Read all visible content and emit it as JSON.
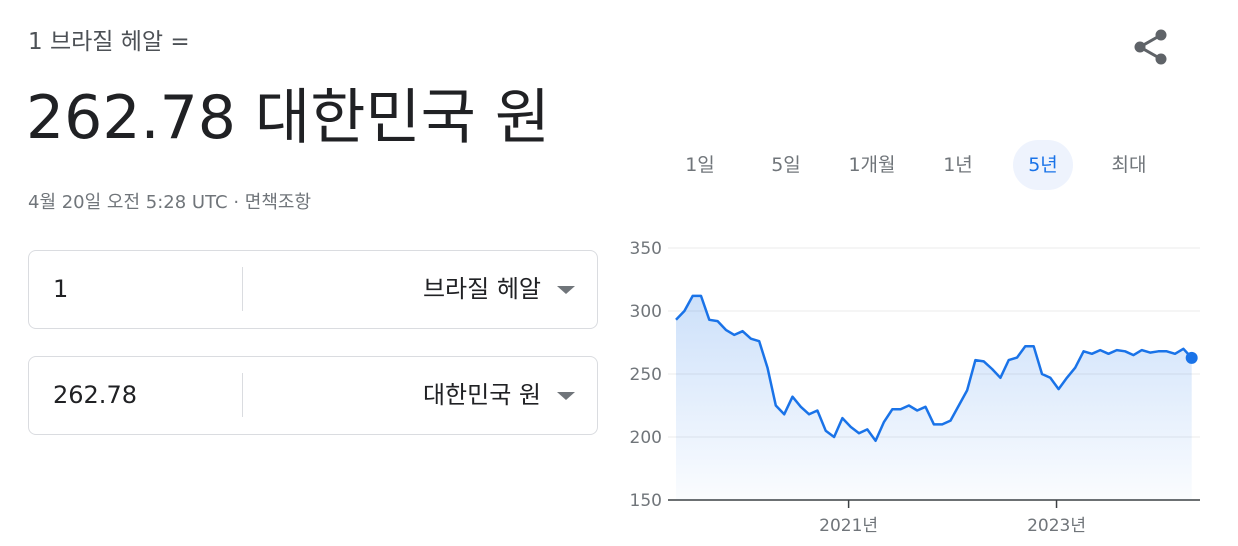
{
  "header": {
    "from_label": "1 브라질 헤알 =",
    "result": "262.78 대한민국 원",
    "timestamp": "4월 20일 오전 5:28 UTC",
    "separator": "·",
    "disclaimer": "면책조항"
  },
  "converter": {
    "rows": [
      {
        "amount": "1",
        "currency": "브라질 헤알"
      },
      {
        "amount": "262.78",
        "currency": "대한민국 원"
      }
    ]
  },
  "tabs": {
    "items": [
      "1일",
      "5일",
      "1개월",
      "1년",
      "5년",
      "최대"
    ],
    "selected_index": 4
  },
  "chart_data": {
    "type": "line",
    "color": "#1a73e8",
    "grid": true,
    "area_fill": true,
    "end_marker": true,
    "x": [
      2019.34,
      2019.42,
      2019.5,
      2019.58,
      2019.66,
      2019.74,
      2019.82,
      2019.9,
      2019.98,
      2020.06,
      2020.14,
      2020.22,
      2020.3,
      2020.38,
      2020.46,
      2020.54,
      2020.62,
      2020.7,
      2020.78,
      2020.86,
      2020.94,
      2021.02,
      2021.1,
      2021.18,
      2021.26,
      2021.34,
      2021.42,
      2021.5,
      2021.58,
      2021.66,
      2021.74,
      2021.82,
      2021.9,
      2021.98,
      2022.06,
      2022.14,
      2022.22,
      2022.3,
      2022.38,
      2022.46,
      2022.54,
      2022.62,
      2022.7,
      2022.78,
      2022.86,
      2022.94,
      2023.02,
      2023.1,
      2023.18,
      2023.26,
      2023.34,
      2023.42,
      2023.5,
      2023.58,
      2023.66,
      2023.74,
      2023.82,
      2023.9,
      2023.98,
      2024.06,
      2024.14,
      2024.22,
      2024.3
    ],
    "values": [
      293,
      300,
      312,
      312,
      293,
      292,
      285,
      281,
      284,
      278,
      276,
      255,
      225,
      218,
      232,
      224,
      218,
      221,
      205,
      200,
      215,
      208,
      203,
      206,
      197,
      212,
      222,
      222,
      225,
      221,
      224,
      210,
      210,
      213,
      225,
      237,
      261,
      260,
      254,
      247,
      261,
      263,
      272,
      272,
      250,
      247,
      238,
      247,
      255,
      268,
      266,
      269,
      266,
      269,
      268,
      265,
      269,
      267,
      268,
      268,
      266,
      270,
      262.78
    ],
    "xlim": [
      2019.33,
      2024.38
    ],
    "ylim": [
      150,
      350
    ],
    "xticks": [
      {
        "value": 2021,
        "label": "2021년"
      },
      {
        "value": 2023,
        "label": "2023년"
      }
    ],
    "yticks": [
      150,
      200,
      250,
      300,
      350
    ]
  }
}
